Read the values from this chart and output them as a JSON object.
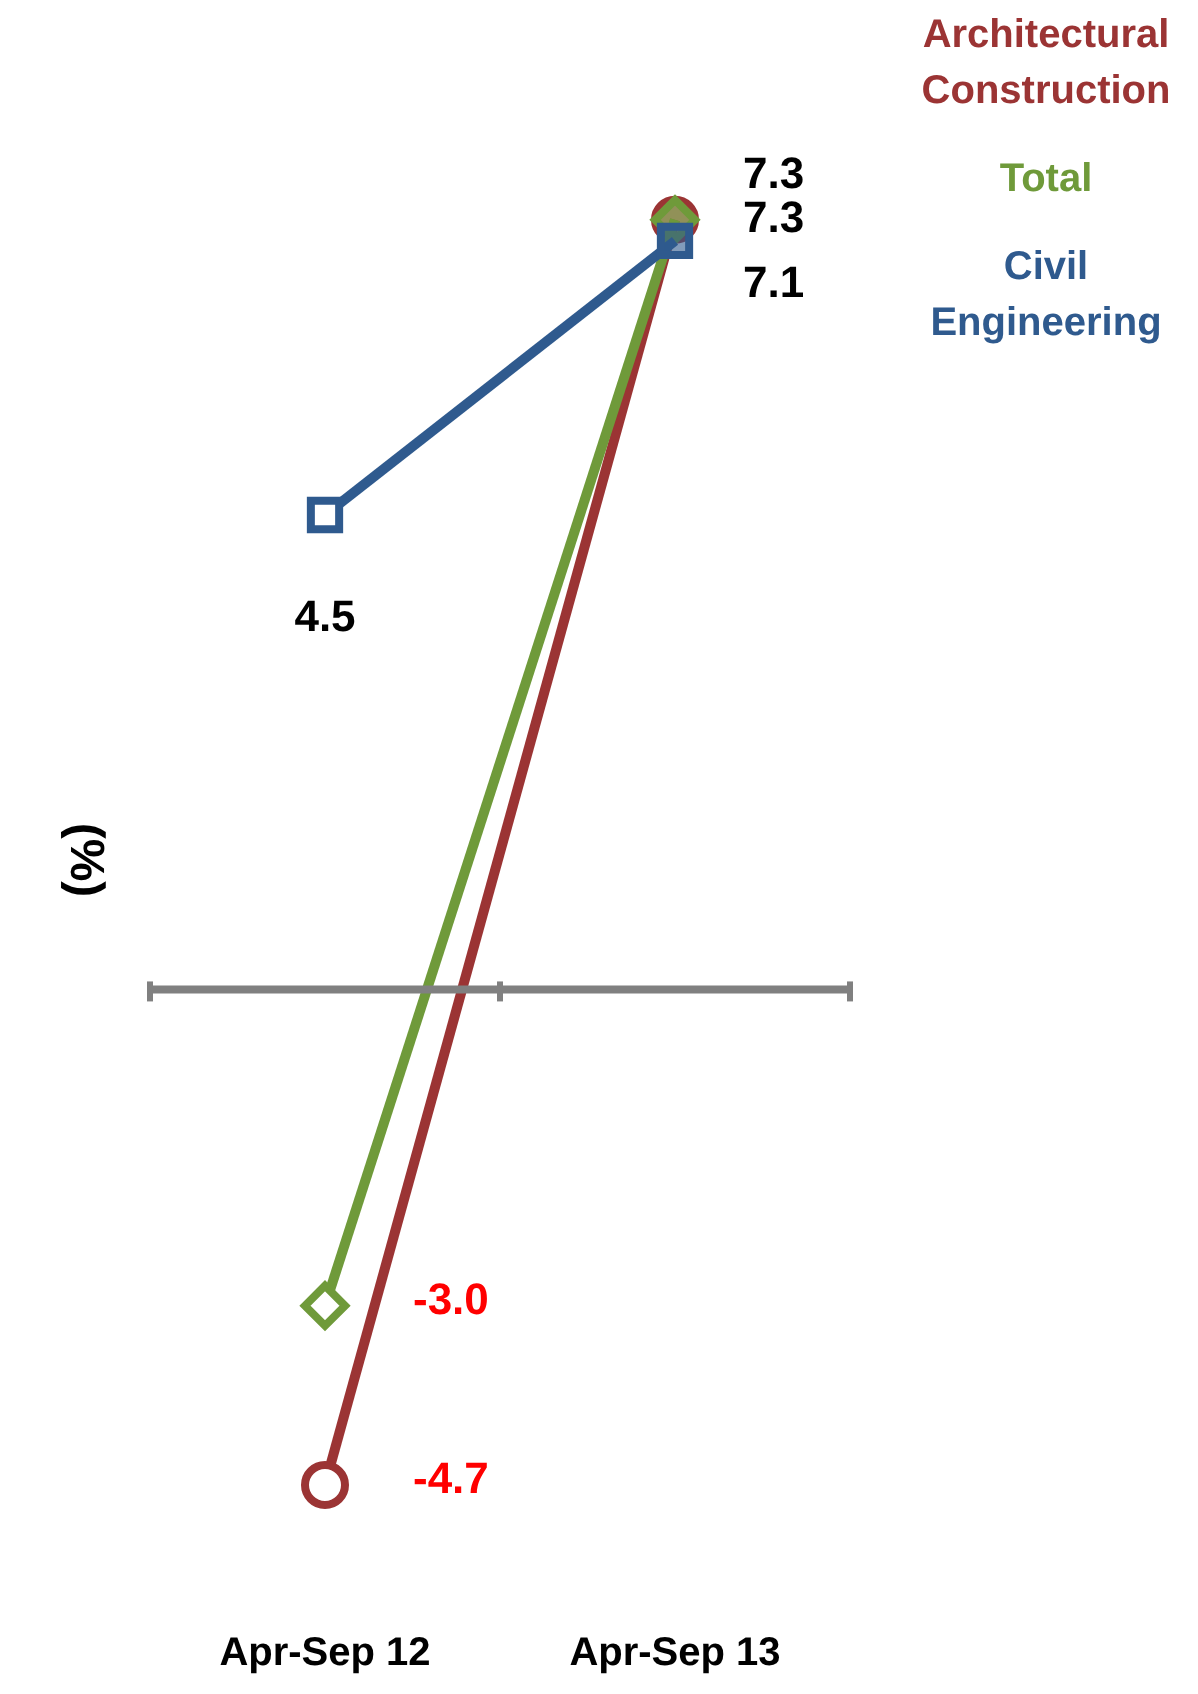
{
  "chart_data": {
    "type": "line",
    "ylabel": "(%)",
    "categories": [
      "Apr-Sep 12",
      "Apr-Sep 13"
    ],
    "series": [
      {
        "name": "Architectural Construction",
        "color": "#9b3434",
        "marker": "circle",
        "values": [
          -4.7,
          7.3
        ],
        "value_labels": [
          "-4.7",
          "7.3"
        ]
      },
      {
        "name": "Total",
        "color": "#6f9a3a",
        "marker": "diamond",
        "values": [
          -3.0,
          7.3
        ],
        "value_labels": [
          "-3.0",
          "7.3"
        ]
      },
      {
        "name": "Civil Engineering",
        "color": "#2f5a8e",
        "marker": "square",
        "values": [
          4.5,
          7.1
        ],
        "value_labels": [
          "4.5",
          "7.1"
        ]
      }
    ],
    "ref_lines": [
      {
        "axis": "y",
        "value": 0,
        "color": "#808080"
      }
    ],
    "legend": "top right",
    "grid": false
  }
}
